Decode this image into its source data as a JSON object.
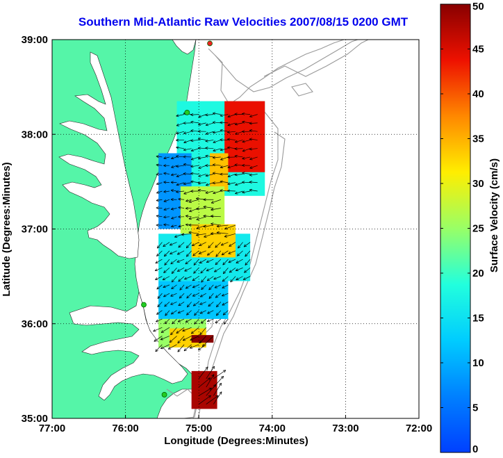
{
  "title": "Southern Mid-Atlantic Raw Velocities 2007/08/15 0200 GMT",
  "chart_data": {
    "type": "heatmap",
    "title": "Southern Mid-Atlantic Raw Velocities 2007/08/15 0200 GMT",
    "xlabel": "Longitude (Degrees:Minutes)",
    "ylabel": "Latitude (Degrees:Minutes)",
    "xlim": [
      -77,
      -72
    ],
    "ylim": [
      35,
      39
    ],
    "x_ticks": [
      {
        "value": -77,
        "label": "77:00"
      },
      {
        "value": -76,
        "label": "76:00"
      },
      {
        "value": -75,
        "label": "75:00"
      },
      {
        "value": -74,
        "label": "74:00"
      },
      {
        "value": -73,
        "label": "73:00"
      },
      {
        "value": -72,
        "label": "72:00"
      }
    ],
    "y_ticks": [
      {
        "value": 39,
        "label": "39:00"
      },
      {
        "value": 38,
        "label": "38:00"
      },
      {
        "value": 37,
        "label": "37:00"
      },
      {
        "value": 36,
        "label": "36:00"
      },
      {
        "value": 35,
        "label": "35:00"
      }
    ],
    "grid": "dotted",
    "colorbar": {
      "label": "Surface Velocity (cm/s)",
      "min": 0,
      "max": 50,
      "ticks": [
        0,
        5,
        10,
        15,
        20,
        25,
        30,
        35,
        40,
        45,
        50
      ],
      "colormap": "jet"
    },
    "colors": {
      "land": "#55f5a8",
      "water": "#ffffff",
      "bathymetry": "#999999",
      "stations": "#22cc22",
      "station_highlight": "#ee2222"
    },
    "stations": [
      {
        "lon": -74.85,
        "lat": 38.96,
        "color": "#ee2222"
      },
      {
        "lon": -75.16,
        "lat": 38.23
      },
      {
        "lon": -75.75,
        "lat": 36.2
      },
      {
        "lon": -75.47,
        "lat": 35.25
      }
    ],
    "velocity_regions": [
      {
        "lon_min": -75.3,
        "lon_max": -74.1,
        "lat_min": 37.35,
        "lat_max": 38.35,
        "speed": 18
      },
      {
        "lon_min": -74.65,
        "lon_max": -74.1,
        "lat_min": 37.6,
        "lat_max": 38.35,
        "speed": 44
      },
      {
        "lon_min": -74.85,
        "lon_max": -74.6,
        "lat_min": 37.4,
        "lat_max": 37.8,
        "speed": 34
      },
      {
        "lon_min": -75.55,
        "lon_max": -75.1,
        "lat_min": 37.0,
        "lat_max": 37.8,
        "speed": 8
      },
      {
        "lon_min": -75.25,
        "lon_max": -74.65,
        "lat_min": 36.95,
        "lat_max": 37.45,
        "speed": 27
      },
      {
        "lon_min": -75.55,
        "lon_max": -74.3,
        "lat_min": 36.45,
        "lat_max": 36.95,
        "speed": 16
      },
      {
        "lon_min": -75.1,
        "lon_max": -74.5,
        "lat_min": 36.7,
        "lat_max": 37.05,
        "speed": 33
      },
      {
        "lon_min": -75.55,
        "lon_max": -74.6,
        "lat_min": 36.05,
        "lat_max": 36.45,
        "speed": 12
      },
      {
        "lon_min": -75.55,
        "lon_max": -74.9,
        "lat_min": 35.75,
        "lat_max": 36.05,
        "speed": 25
      },
      {
        "lon_min": -75.4,
        "lon_max": -74.9,
        "lat_min": 35.75,
        "lat_max": 35.95,
        "speed": 33
      },
      {
        "lon_min": -75.1,
        "lon_max": -74.8,
        "lat_min": 35.8,
        "lat_max": 35.88,
        "speed": 50
      },
      {
        "lon_min": -75.1,
        "lon_max": -74.75,
        "lat_min": 35.1,
        "lat_max": 35.5,
        "speed": 48
      }
    ]
  }
}
